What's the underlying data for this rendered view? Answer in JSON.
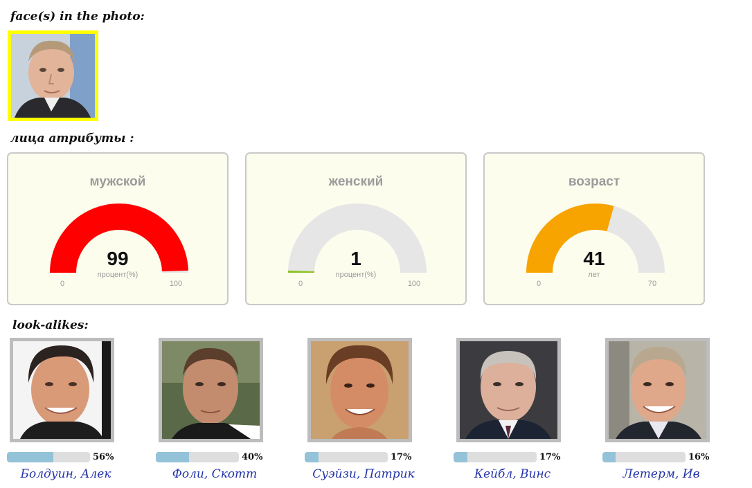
{
  "sections": {
    "faces_title": "face(s) in the photo:",
    "attributes_title": "лица атрибуты :",
    "lookalikes_title": "look-alikes:"
  },
  "colors": {
    "selected_face_border": "#ffff00",
    "male_gauge": "#ff0000",
    "female_gauge": "#8dc21f",
    "age_gauge": "#f7a400",
    "gauge_track": "#e6e6e6",
    "card_bg": "#fdfdee",
    "bar_fill": "#94c3d9",
    "link": "#2233aa"
  },
  "attributes": [
    {
      "id": "male",
      "title": "мужской",
      "value": 99,
      "value_label": "99",
      "unit": "процент(%)",
      "min": 0,
      "max": 100,
      "min_label": "0",
      "max_label": "100",
      "color": "#ff0000"
    },
    {
      "id": "female",
      "title": "женский",
      "value": 1,
      "value_label": "1",
      "unit": "процент(%)",
      "min": 0,
      "max": 100,
      "min_label": "0",
      "max_label": "100",
      "color": "#8dc21f"
    },
    {
      "id": "age",
      "title": "возраст",
      "value": 41,
      "value_label": "41",
      "unit": "лет",
      "min": 0,
      "max": 70,
      "min_label": "0",
      "max_label": "70",
      "color": "#f7a400"
    }
  ],
  "lookalikes": [
    {
      "name": "Болдуин, Алек",
      "percent": 56,
      "percent_label": "56%",
      "icon": "face-photo"
    },
    {
      "name": "Фоли, Скотт",
      "percent": 40,
      "percent_label": "40%",
      "icon": "face-photo"
    },
    {
      "name": "Суэйзи, Патрик",
      "percent": 17,
      "percent_label": "17%",
      "icon": "face-photo"
    },
    {
      "name": "Кейбл, Винс",
      "percent": 17,
      "percent_label": "17%",
      "icon": "face-photo"
    },
    {
      "name": "Летерм, Ив",
      "percent": 16,
      "percent_label": "16%",
      "icon": "face-photo"
    }
  ]
}
